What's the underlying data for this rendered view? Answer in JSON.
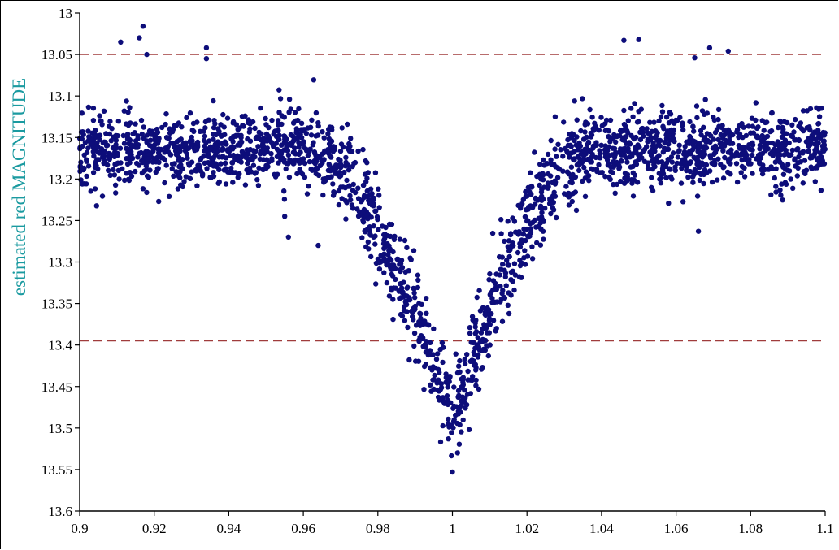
{
  "chart_data": {
    "type": "scatter",
    "title": "",
    "xlabel": "",
    "ylabel": "estimated red MAGNITUDE",
    "xlim": [
      0.9,
      1.1
    ],
    "ylim": [
      13.0,
      13.6
    ],
    "y_inverted": true,
    "grid": false,
    "x_ticks": [
      "0.9",
      "0.92",
      "0.94",
      "0.96",
      "0.98",
      "1",
      "1.02",
      "1.04",
      "1.06",
      "1.08",
      "1.1"
    ],
    "y_ticks": [
      "13",
      "13.05",
      "13.1",
      "13.15",
      "13.2",
      "13.25",
      "13.3",
      "13.35",
      "13.4",
      "13.45",
      "13.5",
      "13.55",
      "13.6"
    ],
    "reference_lines": [
      {
        "axis": "y",
        "value": 13.05,
        "style": "dashed",
        "color": "#a03c3c"
      },
      {
        "axis": "y",
        "value": 13.395,
        "style": "dashed",
        "color": "#a03c3c"
      }
    ],
    "series": [
      {
        "marker_color": "#0d0d7a",
        "light_curve_profile": {
          "baseline_magnitude": 13.165,
          "scatter": 0.022,
          "eclipse_center_phase": 1.0,
          "eclipse_depth_magnitude": 13.49,
          "ingress_start_phase": 0.962,
          "egress_end_phase": 1.035
        },
        "notable_points": [
          {
            "x": 0.911,
            "y": 13.035
          },
          {
            "x": 0.916,
            "y": 13.03
          },
          {
            "x": 0.917,
            "y": 13.016
          },
          {
            "x": 0.918,
            "y": 13.05
          },
          {
            "x": 0.934,
            "y": 13.042
          },
          {
            "x": 0.934,
            "y": 13.055
          },
          {
            "x": 0.956,
            "y": 13.27
          },
          {
            "x": 0.955,
            "y": 13.245
          },
          {
            "x": 0.964,
            "y": 13.28
          },
          {
            "x": 1.0,
            "y": 13.553
          },
          {
            "x": 1.046,
            "y": 13.033
          },
          {
            "x": 1.05,
            "y": 13.032
          },
          {
            "x": 1.065,
            "y": 13.054
          },
          {
            "x": 1.066,
            "y": 13.263
          },
          {
            "x": 1.069,
            "y": 13.042
          },
          {
            "x": 1.074,
            "y": 13.046
          }
        ]
      }
    ]
  },
  "colors": {
    "axis": "#000000",
    "ylabel": "#1a9aa0",
    "points": "#0d0d7a",
    "reference": "#a03c3c"
  }
}
